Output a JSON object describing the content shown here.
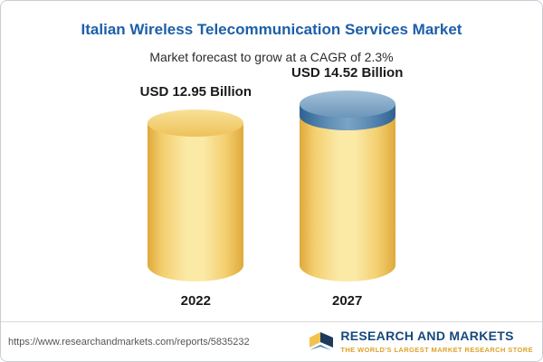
{
  "header": {
    "title": "Italian Wireless Telecommunication Services Market",
    "subtitle": "Market forecast to grow at a CAGR of 2.3%"
  },
  "chart_data": {
    "type": "bar",
    "title": "Italian Wireless Telecommunication Services Market",
    "subtitle": "Market forecast to grow at a CAGR of 2.3%",
    "categories": [
      "2022",
      "2027"
    ],
    "values": [
      12.95,
      14.52
    ],
    "value_labels": [
      "USD 12.95 Billion",
      "USD 14.52 Billion"
    ],
    "unit": "USD Billion",
    "cagr_percent": 2.3,
    "ylim": [
      0,
      14.52
    ],
    "legend": "none",
    "grid": "off",
    "colors": {
      "bar_base": "#f3ce6e",
      "bar_edge": "#dfa93b",
      "growth_cap": "#5d8cb4",
      "title": "#1c5fa9"
    }
  },
  "footer": {
    "url": "https://www.researchandmarkets.com/reports/5835232",
    "logo_name": "RESEARCH AND MARKETS",
    "logo_tagline": "THE WORLD'S LARGEST MARKET RESEARCH STORE"
  }
}
